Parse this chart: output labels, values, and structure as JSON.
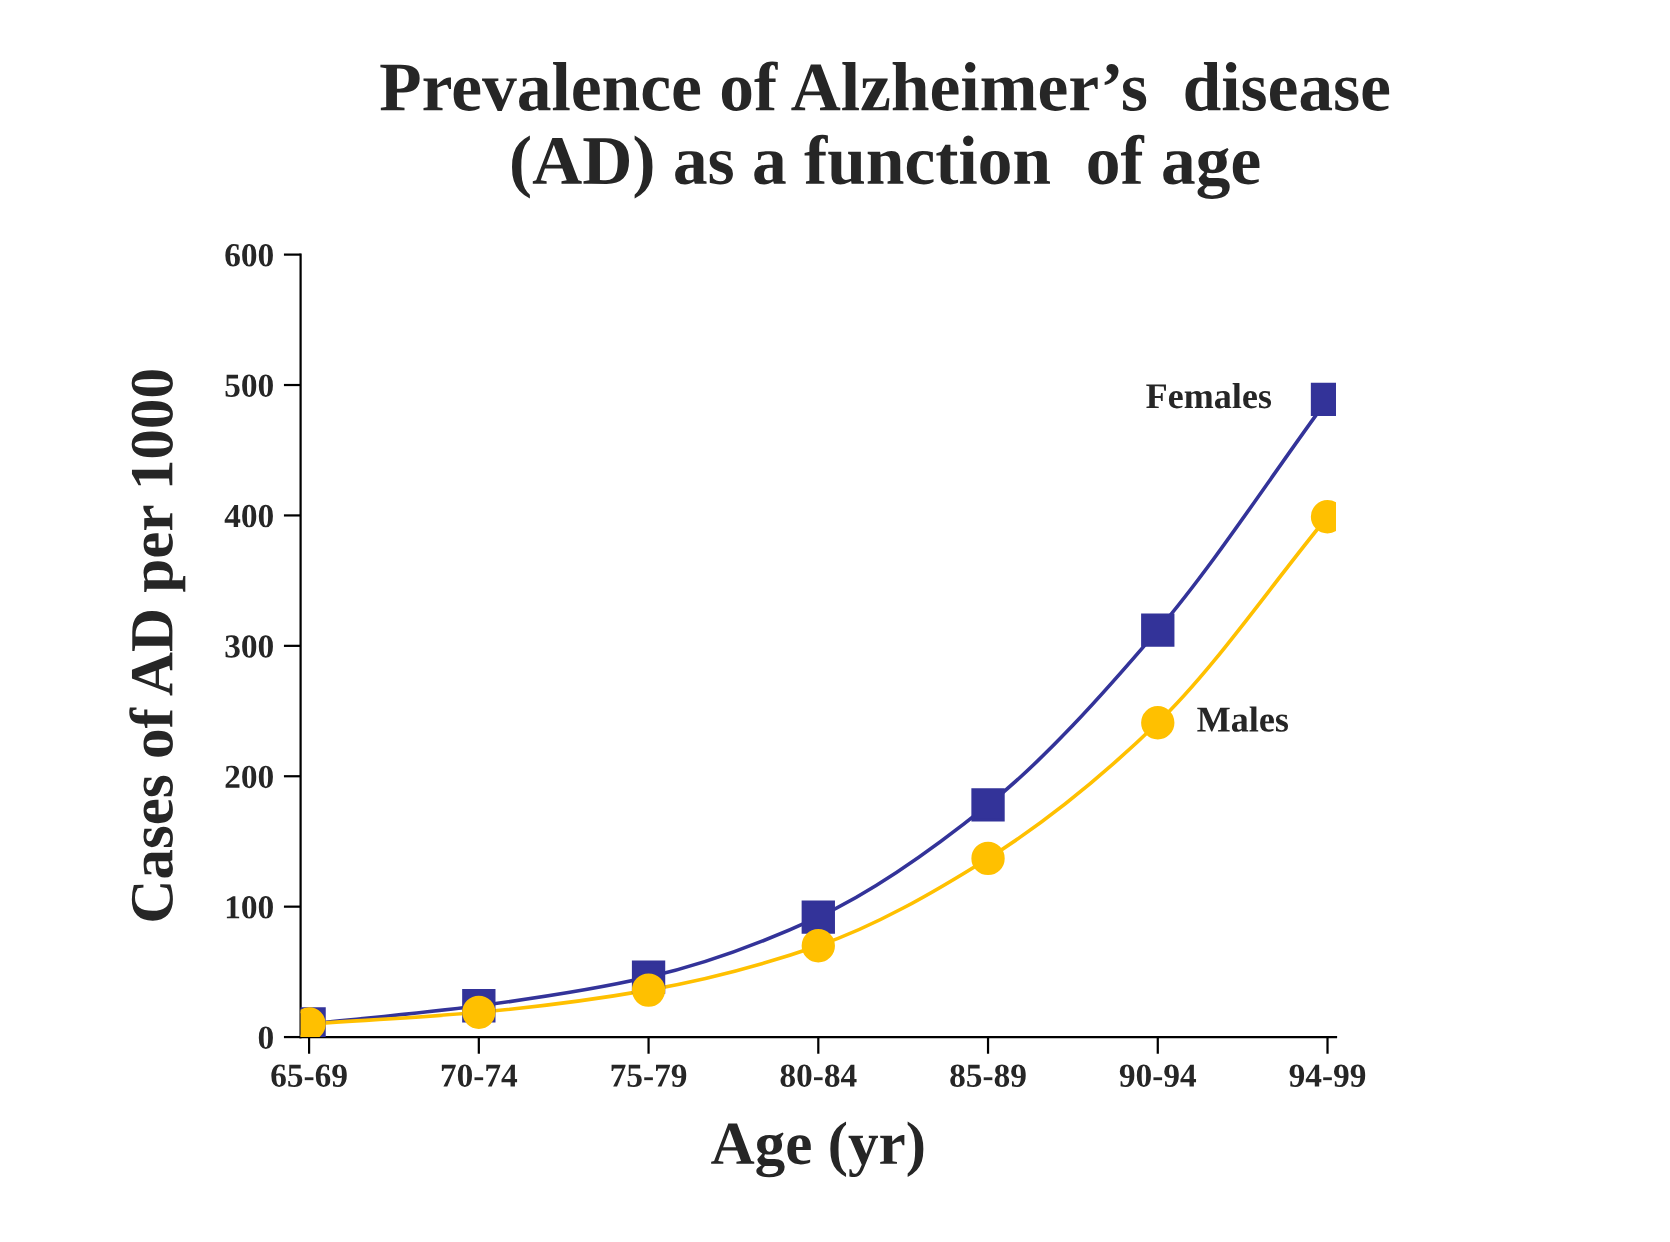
{
  "chart_data": {
    "type": "line",
    "title": "Prevalence of Alzheimer’s  disease\n(AD) as a function  of age",
    "xlabel": "Age (yr)",
    "ylabel": "Cases of AD per 1000",
    "categories": [
      "65-69",
      "70-74",
      "75-79",
      "80-84",
      "85-89",
      "90-94",
      "94-99"
    ],
    "series": [
      {
        "name": "Females",
        "color": "#333399",
        "marker": "square",
        "values": [
          10,
          24,
          46,
          92,
          178,
          312,
          489
        ]
      },
      {
        "name": "Males",
        "color": "#ffc000",
        "marker": "circle",
        "values": [
          10,
          19,
          36,
          70,
          137,
          241,
          399
        ]
      }
    ],
    "ylim": [
      0,
      600
    ],
    "yticks": [
      0,
      100,
      200,
      300,
      400,
      500,
      600
    ],
    "grid": false,
    "legend": false
  }
}
